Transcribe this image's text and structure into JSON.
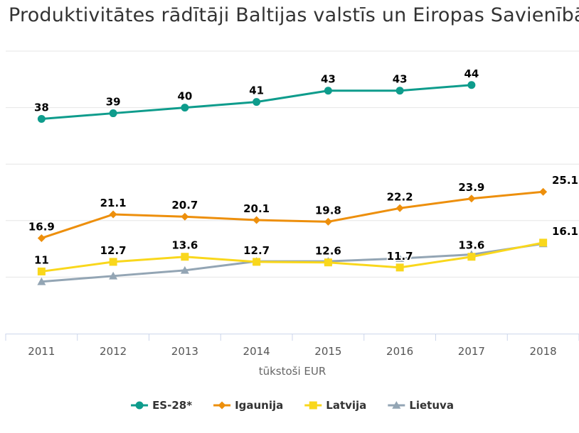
{
  "chart_data": {
    "type": "line",
    "title": "Produktivitātes rādītāji Baltijas valstīs un Eiropas Savienībā",
    "xlabel": "tūkstoši EUR",
    "ylabel": "",
    "categories": [
      "2011",
      "2012",
      "2013",
      "2014",
      "2015",
      "2016",
      "2017",
      "2018"
    ],
    "ylim": [
      0,
      50
    ],
    "grid": true,
    "legend_position": "bottom",
    "series": [
      {
        "name": "ES-28*",
        "color": "#0e9c8c",
        "marker": "circle",
        "values": [
          38,
          39,
          40,
          41,
          43,
          43,
          44,
          null
        ],
        "labels": [
          "38",
          "39",
          "40",
          "41",
          "43",
          "43",
          "44",
          null
        ]
      },
      {
        "name": "Igaunija",
        "color": "#ed8f0c",
        "marker": "diamond",
        "values": [
          16.9,
          21.1,
          20.7,
          20.1,
          19.8,
          22.2,
          23.9,
          25.1
        ],
        "labels": [
          "16.9",
          "21.1",
          "20.7",
          "20.1",
          "19.8",
          "22.2",
          "23.9",
          "25.1"
        ]
      },
      {
        "name": "Latvija",
        "color": "#f9d71c",
        "marker": "square",
        "values": [
          11,
          12.7,
          13.6,
          12.7,
          12.6,
          11.7,
          13.6,
          16.1
        ],
        "labels": [
          "11",
          "12.7",
          "13.6",
          "12.7",
          "12.6",
          "11.7",
          "13.6",
          "16.1"
        ]
      },
      {
        "name": "Lietuva",
        "color": "#93a5b4",
        "marker": "triangle",
        "values": [
          9.2,
          10.2,
          11.2,
          12.8,
          12.8,
          13.3,
          14.0,
          15.9
        ],
        "labels": [
          null,
          null,
          null,
          null,
          null,
          null,
          null,
          null
        ]
      }
    ]
  }
}
